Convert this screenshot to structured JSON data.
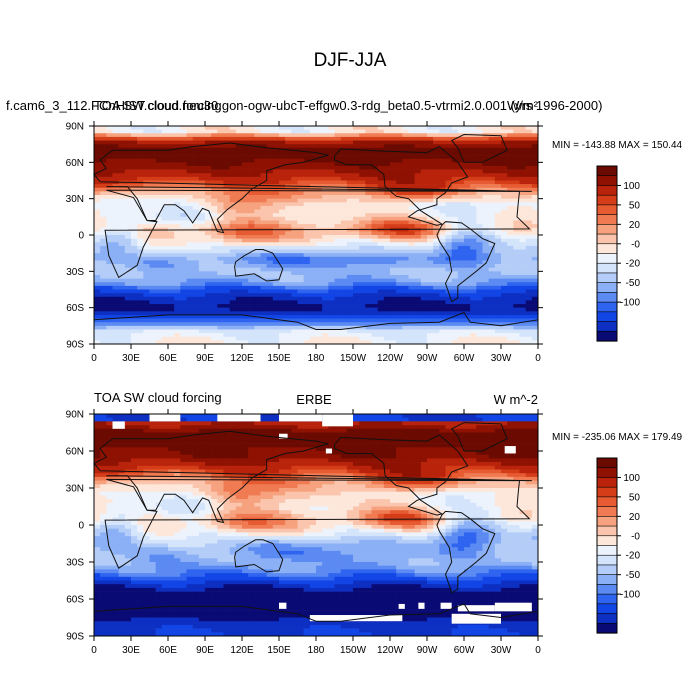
{
  "figure": {
    "title": "DJF-JJA"
  },
  "colors": {
    "levels": [
      -100,
      -80,
      -60,
      -50,
      -40,
      -30,
      -20,
      -10,
      0,
      10,
      20,
      30,
      40,
      50,
      60,
      80,
      100
    ],
    "palette": [
      "#0a0a74",
      "#0d2fc2",
      "#1245e6",
      "#2e64f0",
      "#5b8af2",
      "#8cb0f5",
      "#b4cdf8",
      "#d4e4fb",
      "#ecf3fd",
      "#fde7da",
      "#fac5ac",
      "#f6a27f",
      "#f07b53",
      "#e75b32",
      "#d43d18",
      "#b9230b",
      "#8e1102",
      "#6b0a00"
    ],
    "missing": "#ffffff",
    "coast": "#111111"
  },
  "chart_data": [
    {
      "type": "heatmap",
      "name": "model-panel",
      "left_title": "f.cam6_3_112.FCnHIST.cloud.neu30.gon-ogw-ubcT-effgw0.3-rdg_beta0.5-vtrmi2.0.001 (yrs 1996-2000)",
      "overlay_title": "TOA SW cloud forcing",
      "center_title": "",
      "right_title": "W/m²",
      "minmax": "MIN = -143.88 MAX = 150.44",
      "xlim": [
        0,
        360
      ],
      "ylim": [
        -90,
        90
      ],
      "x_ticks": [
        "0",
        "30E",
        "60E",
        "90E",
        "120E",
        "150E",
        "180",
        "150W",
        "120W",
        "90W",
        "60W",
        "30W",
        "0"
      ],
      "y_ticks": [
        "90N",
        "60N",
        "30N",
        "0",
        "30S",
        "60S",
        "90S"
      ],
      "colorbar_labels": [
        "100",
        "50",
        "20",
        "-0",
        "-20",
        "-50",
        "-100"
      ],
      "lat_profile": [
        [
          85,
          0
        ],
        [
          75,
          95
        ],
        [
          65,
          110
        ],
        [
          55,
          90
        ],
        [
          45,
          60
        ],
        [
          35,
          30
        ],
        [
          25,
          5
        ],
        [
          15,
          5
        ],
        [
          5,
          20
        ],
        [
          0,
          15
        ],
        [
          -10,
          -5
        ],
        [
          -20,
          -25
        ],
        [
          -30,
          -20
        ],
        [
          -40,
          -40
        ],
        [
          -50,
          -85
        ],
        [
          -60,
          -110
        ],
        [
          -70,
          -60
        ],
        [
          -80,
          -10
        ],
        [
          -90,
          0
        ]
      ],
      "missing_boxes": []
    },
    {
      "type": "heatmap",
      "name": "obs-panel",
      "left_title": "TOA SW cloud forcing",
      "overlay_title": "",
      "center_title": "ERBE",
      "right_title": "W m^-2",
      "minmax": "MIN = -235.06 MAX = 179.49",
      "xlim": [
        0,
        360
      ],
      "ylim": [
        -90,
        90
      ],
      "x_ticks": [
        "0",
        "30E",
        "60E",
        "90E",
        "120E",
        "150E",
        "180",
        "150W",
        "120W",
        "90W",
        "60W",
        "30W",
        "0"
      ],
      "y_ticks": [
        "90N",
        "60N",
        "30N",
        "0",
        "30S",
        "60S",
        "90S"
      ],
      "colorbar_labels": [
        "100",
        "50",
        "20",
        "-0",
        "-20",
        "-50",
        "-100"
      ],
      "lat_profile": [
        [
          85,
          60
        ],
        [
          75,
          110
        ],
        [
          65,
          105
        ],
        [
          55,
          95
        ],
        [
          45,
          60
        ],
        [
          35,
          30
        ],
        [
          25,
          10
        ],
        [
          15,
          5
        ],
        [
          5,
          15
        ],
        [
          0,
          10
        ],
        [
          -10,
          -10
        ],
        [
          -20,
          -20
        ],
        [
          -30,
          -25
        ],
        [
          -40,
          -50
        ],
        [
          -50,
          -95
        ],
        [
          -60,
          -140
        ],
        [
          -70,
          -120
        ],
        [
          -80,
          -90
        ],
        [
          -90,
          -80
        ]
      ],
      "missing_boxes": [
        [
          15,
          84,
          25,
          78
        ],
        [
          45,
          90,
          70,
          84
        ],
        [
          100,
          90,
          135,
          84
        ],
        [
          150,
          90,
          185,
          84
        ],
        [
          185,
          90,
          210,
          80
        ],
        [
          150,
          74,
          157,
          70
        ],
        [
          188,
          62,
          193,
          58
        ],
        [
          333,
          64,
          342,
          58
        ],
        [
          150,
          -63,
          156,
          -68
        ],
        [
          247,
          -64,
          252,
          -68
        ],
        [
          263,
          -63,
          268,
          -68
        ],
        [
          281,
          -63,
          290,
          -68
        ],
        [
          295,
          -65,
          325,
          -70
        ],
        [
          325,
          -63,
          355,
          -70
        ],
        [
          175,
          -73,
          250,
          -78
        ],
        [
          290,
          -72,
          330,
          -80
        ]
      ]
    }
  ]
}
